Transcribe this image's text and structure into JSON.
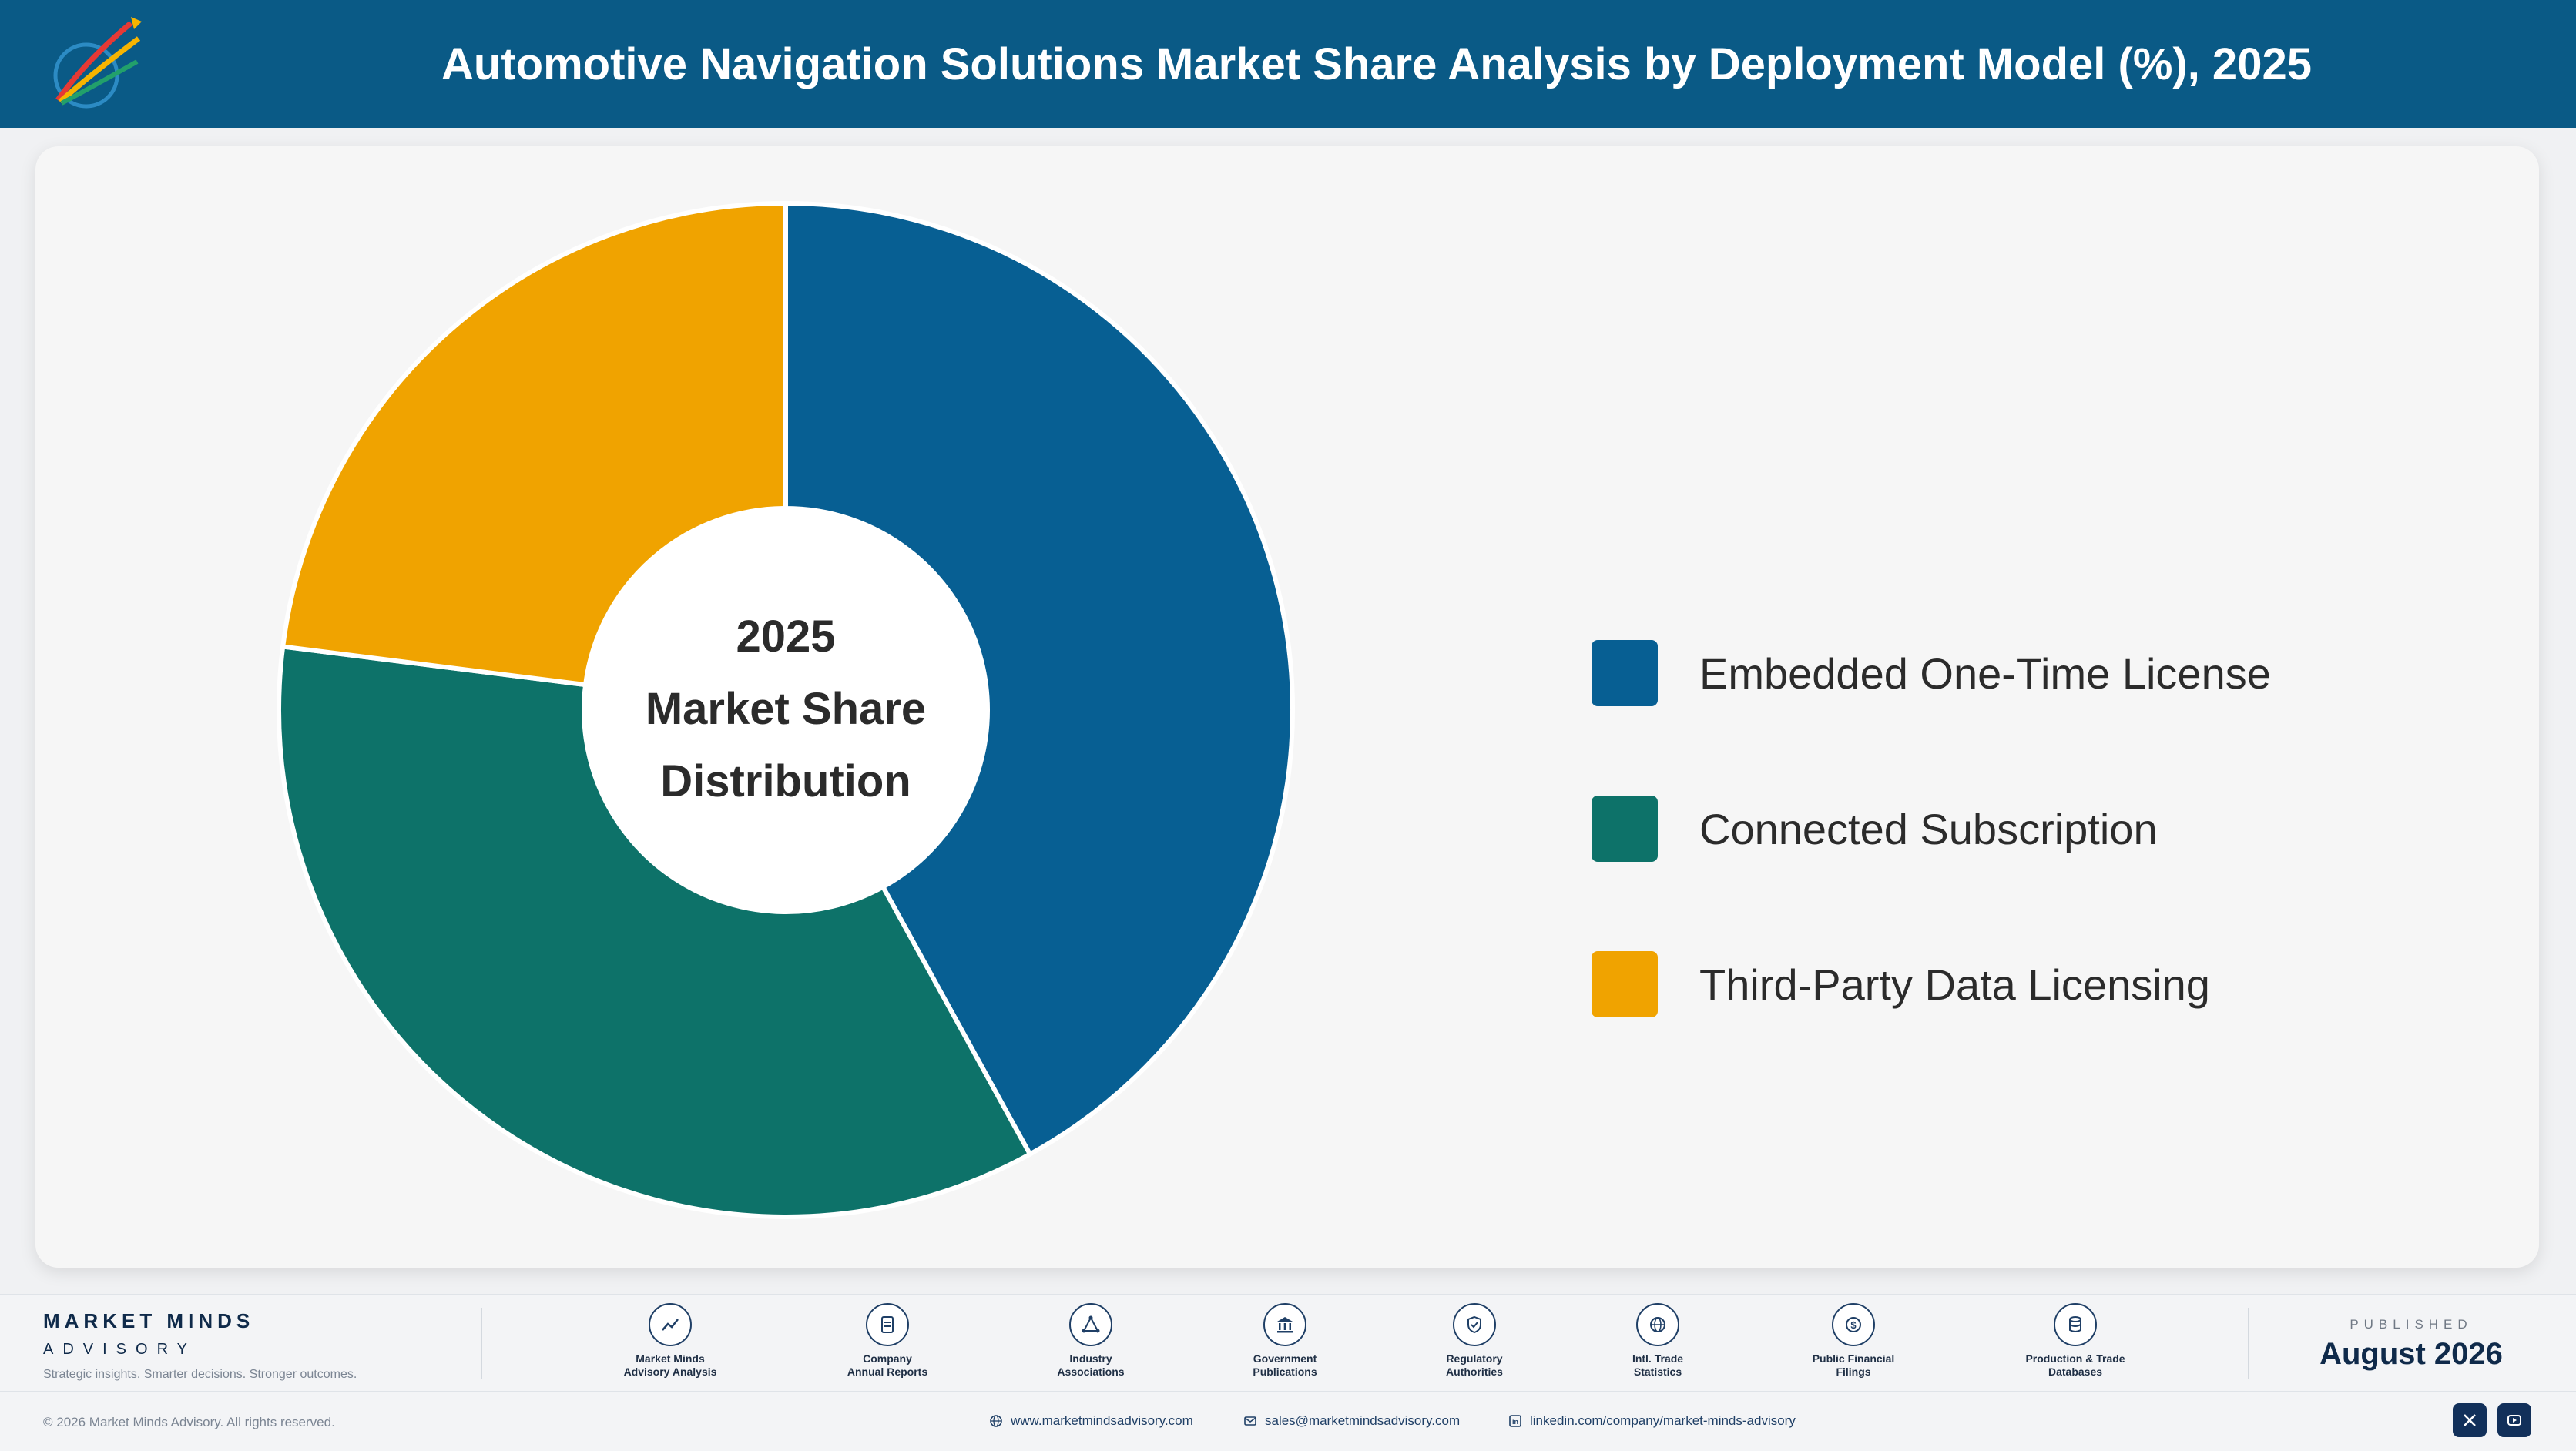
{
  "header": {
    "title": "Automotive Navigation Solutions Market Share Analysis by Deployment Model (%), 2025",
    "logo_icon": "market-minds-logo"
  },
  "chart_data": {
    "type": "pie",
    "variant": "donut",
    "title": "Automotive Navigation Solutions Market Share Analysis by Deployment Model (%), 2025",
    "center_label": [
      "2025",
      "Market Share",
      "Distribution"
    ],
    "categories": [
      "Embedded One-Time License",
      "Connected Subscription",
      "Third-Party Data Licensing"
    ],
    "values": [
      42,
      35,
      23
    ],
    "unit": "%",
    "colors": [
      "#075f93",
      "#0d7269",
      "#f0a300"
    ],
    "legend_position": "right",
    "start_angle": "12 o'clock, clockwise"
  },
  "legend": {
    "items": [
      {
        "label": "Embedded One-Time License",
        "color": "#075f93"
      },
      {
        "label": "Connected Subscription",
        "color": "#0d7269"
      },
      {
        "label": "Third-Party Data Licensing",
        "color": "#f0a300"
      }
    ]
  },
  "footer": {
    "brand_name": "MARKET MINDS",
    "brand_sub": "ADVISORY",
    "tagline": "Strategic insights. Smarter decisions. Stronger outcomes.",
    "sources": [
      {
        "label": "Market Minds\nAdvisory Analysis",
        "icon": "trend-line-icon"
      },
      {
        "label": "Company\nAnnual Reports",
        "icon": "document-icon"
      },
      {
        "label": "Industry\nAssociations",
        "icon": "network-icon"
      },
      {
        "label": "Government\nPublications",
        "icon": "government-building-icon"
      },
      {
        "label": "Regulatory\nAuthorities",
        "icon": "shield-check-icon"
      },
      {
        "label": "Intl. Trade\nStatistics",
        "icon": "globe-icon"
      },
      {
        "label": "Public Financial\nFilings",
        "icon": "dollar-coin-icon"
      },
      {
        "label": "Production & Trade\nDatabases",
        "icon": "database-icon"
      }
    ],
    "published_label": "PUBLISHED",
    "published_date": "August 2026",
    "copyright": "© 2026 Market Minds Advisory. All rights reserved.",
    "website": "www.marketmindsadvisory.com",
    "email": "sales@marketmindsadvisory.com",
    "linkedin": "linkedin.com/company/market-minds-advisory",
    "social_icons": [
      "x-icon",
      "youtube-icon"
    ],
    "brand_color": "#0a5a86"
  }
}
